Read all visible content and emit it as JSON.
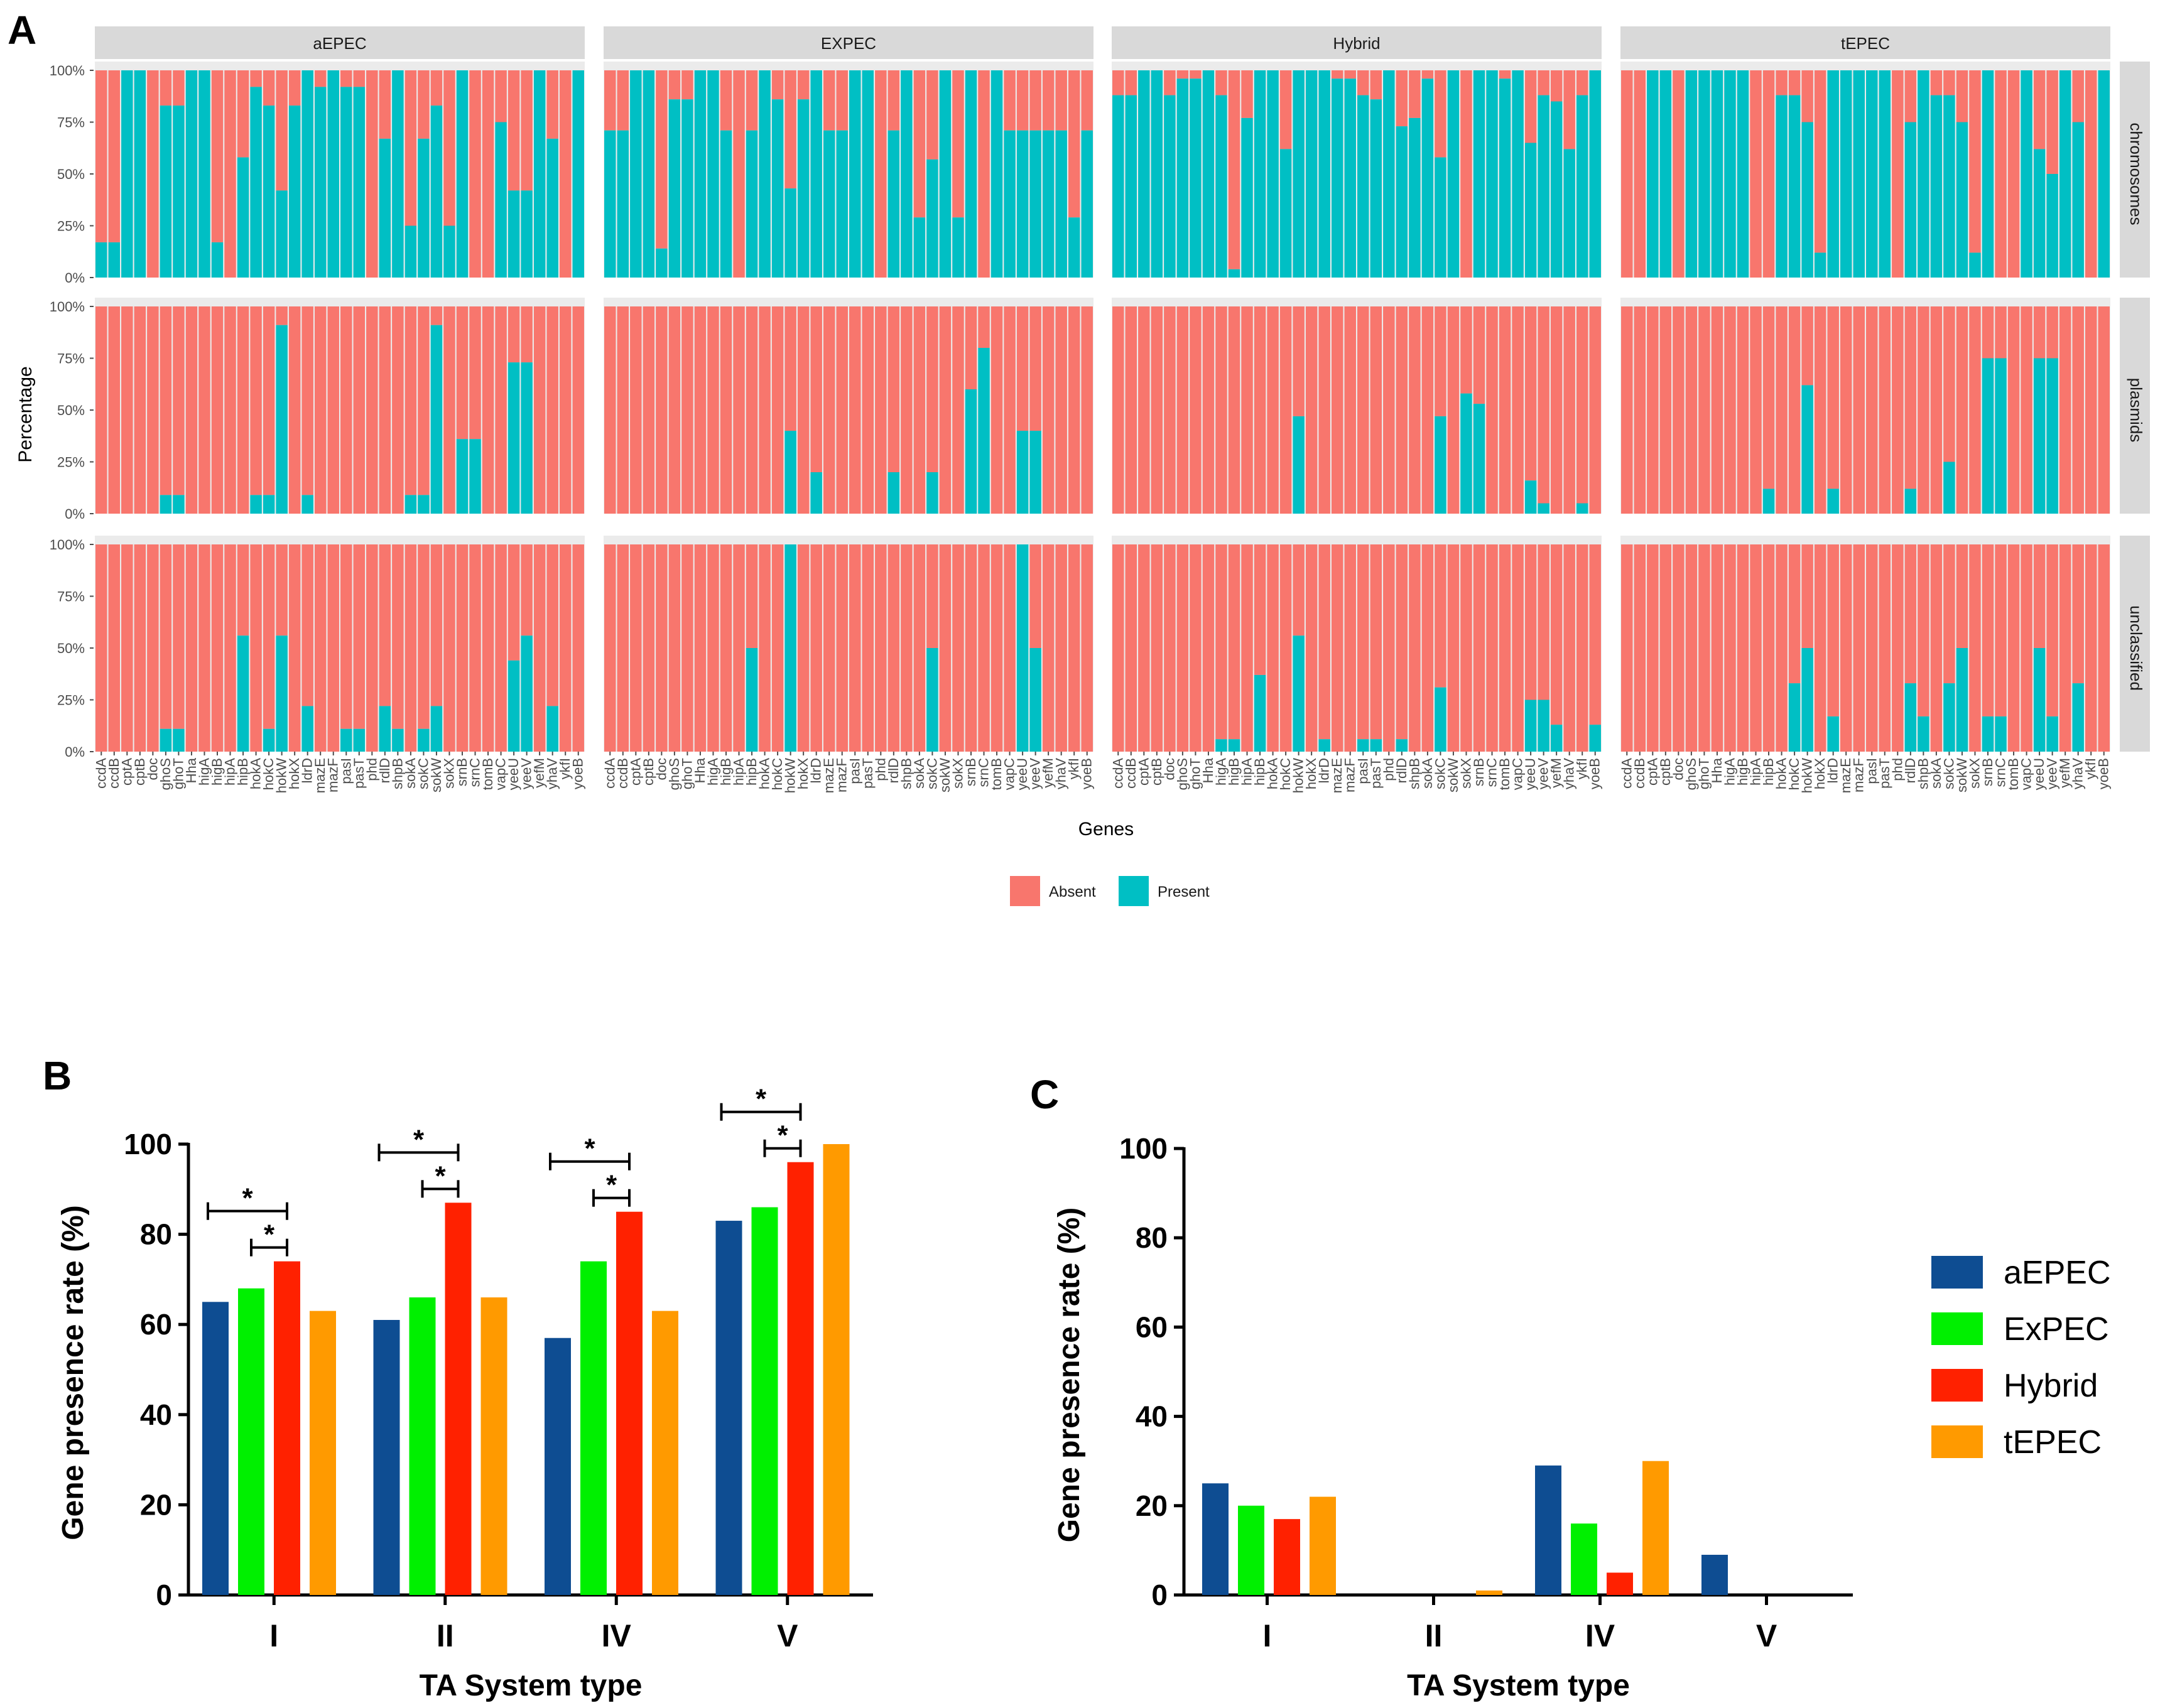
{
  "chart_data": [
    {
      "panel": "A",
      "type": "bar",
      "stacked": true,
      "xlabel": "Genes",
      "ylabel": "Percentage",
      "yticks": [
        "0%",
        "25%",
        "50%",
        "75%",
        "100%"
      ],
      "columns": [
        "aEPEC",
        "EXPEC",
        "Hybrid",
        "tEPEC"
      ],
      "rows": [
        "chromosomes",
        "plasmids",
        "unclassified"
      ],
      "legend": [
        {
          "label": "Absent",
          "color": "#F8766D"
        },
        {
          "label": "Present",
          "color": "#00BFC4"
        }
      ],
      "genes": [
        "ccdA",
        "ccdB",
        "cptA",
        "cptB",
        "doc",
        "ghoS",
        "ghoT",
        "Hha",
        "higA",
        "higB",
        "hipA",
        "hipB",
        "hokA",
        "hokC",
        "hokW",
        "hokX",
        "ldrD",
        "mazE",
        "mazF",
        "pasI",
        "pasT",
        "phd",
        "rdlD",
        "shpB",
        "sokA",
        "sokC",
        "sokW",
        "sokX",
        "srnB",
        "srnC",
        "tomB",
        "vapC",
        "yeeU",
        "yeeV",
        "yefM",
        "yhaV",
        "ykfI",
        "yoeB"
      ],
      "present_percent": {
        "chromosomes": {
          "aEPEC": [
            17,
            17,
            100,
            100,
            0,
            83,
            83,
            100,
            100,
            17,
            0,
            58,
            92,
            83,
            42,
            83,
            100,
            92,
            100,
            92,
            92,
            0,
            67,
            100,
            25,
            67,
            83,
            25,
            100,
            0,
            0,
            75,
            42,
            42,
            100,
            67,
            0,
            100
          ],
          "EXPEC": [
            71,
            71,
            100,
            100,
            14,
            86,
            86,
            100,
            100,
            71,
            0,
            71,
            100,
            86,
            43,
            86,
            100,
            71,
            71,
            100,
            100,
            0,
            71,
            100,
            29,
            57,
            100,
            29,
            100,
            0,
            100,
            71,
            71,
            71,
            71,
            71,
            29,
            71
          ],
          "Hybrid": [
            88,
            88,
            100,
            100,
            88,
            96,
            96,
            100,
            88,
            4,
            77,
            100,
            100,
            62,
            100,
            100,
            100,
            96,
            96,
            88,
            86,
            100,
            73,
            77,
            96,
            58,
            100,
            0,
            100,
            100,
            96,
            100,
            65,
            88,
            85,
            62,
            88,
            100
          ],
          "tEPEC": [
            0,
            0,
            100,
            100,
            0,
            100,
            100,
            100,
            100,
            100,
            0,
            0,
            88,
            88,
            75,
            12,
            100,
            100,
            100,
            100,
            100,
            0,
            75,
            100,
            88,
            88,
            75,
            12,
            100,
            0,
            0,
            100,
            62,
            50,
            100,
            75,
            0,
            100
          ]
        },
        "plasmids": {
          "aEPEC": [
            0,
            0,
            0,
            0,
            0,
            9,
            9,
            0,
            0,
            0,
            0,
            0,
            9,
            9,
            91,
            0,
            9,
            0,
            0,
            0,
            0,
            0,
            0,
            0,
            9,
            9,
            91,
            0,
            36,
            36,
            0,
            0,
            73,
            73,
            0,
            0,
            0,
            0
          ],
          "EXPEC": [
            0,
            0,
            0,
            0,
            0,
            0,
            0,
            0,
            0,
            0,
            0,
            0,
            0,
            0,
            40,
            0,
            20,
            0,
            0,
            0,
            0,
            0,
            20,
            0,
            0,
            20,
            0,
            0,
            60,
            80,
            0,
            0,
            40,
            40,
            0,
            0,
            0,
            0
          ],
          "Hybrid": [
            0,
            0,
            0,
            0,
            0,
            0,
            0,
            0,
            0,
            0,
            0,
            0,
            0,
            0,
            47,
            0,
            0,
            0,
            0,
            0,
            0,
            0,
            0,
            0,
            0,
            47,
            0,
            58,
            53,
            0,
            0,
            0,
            16,
            5,
            0,
            0,
            5,
            0
          ],
          "tEPEC": [
            0,
            0,
            0,
            0,
            0,
            0,
            0,
            0,
            0,
            0,
            0,
            12,
            0,
            0,
            62,
            0,
            12,
            0,
            0,
            0,
            0,
            0,
            12,
            0,
            0,
            25,
            0,
            0,
            75,
            75,
            0,
            0,
            75,
            75,
            0,
            0,
            0,
            0
          ]
        },
        "unclassified": {
          "aEPEC": [
            0,
            0,
            0,
            0,
            0,
            11,
            11,
            0,
            0,
            0,
            0,
            56,
            0,
            11,
            56,
            0,
            22,
            0,
            0,
            11,
            11,
            0,
            22,
            11,
            0,
            11,
            22,
            0,
            0,
            0,
            0,
            0,
            44,
            56,
            0,
            22,
            0,
            0
          ],
          "EXPEC": [
            0,
            0,
            0,
            0,
            0,
            0,
            0,
            0,
            0,
            0,
            0,
            50,
            0,
            0,
            100,
            0,
            0,
            0,
            0,
            0,
            0,
            0,
            0,
            0,
            0,
            50,
            0,
            0,
            0,
            0,
            0,
            0,
            100,
            50,
            0,
            0,
            0,
            0
          ],
          "Hybrid": [
            0,
            0,
            0,
            0,
            0,
            0,
            0,
            0,
            6,
            6,
            0,
            37,
            0,
            0,
            56,
            0,
            6,
            0,
            0,
            6,
            6,
            0,
            6,
            0,
            0,
            31,
            0,
            0,
            0,
            0,
            0,
            0,
            25,
            25,
            13,
            0,
            0,
            13
          ],
          "tEPEC": [
            0,
            0,
            0,
            0,
            0,
            0,
            0,
            0,
            0,
            0,
            0,
            0,
            0,
            33,
            50,
            0,
            17,
            0,
            0,
            0,
            0,
            0,
            33,
            17,
            0,
            33,
            50,
            0,
            17,
            17,
            0,
            0,
            50,
            17,
            0,
            33,
            0,
            0
          ]
        }
      }
    },
    {
      "panel": "B",
      "type": "bar",
      "xlabel": "TA System type",
      "ylabel": "Gene presence rate (%)",
      "ylim": [
        0,
        100
      ],
      "yticks": [
        0,
        20,
        40,
        60,
        80,
        100
      ],
      "categories": [
        "I",
        "II",
        "IV",
        "V"
      ],
      "series": [
        {
          "name": "aEPEC",
          "color": "#0E4D92",
          "values": [
            65,
            61,
            57,
            83
          ]
        },
        {
          "name": "ExPEC",
          "color": "#00F000",
          "values": [
            68,
            66,
            74,
            86
          ]
        },
        {
          "name": "Hybrid",
          "color": "#FF2100",
          "values": [
            74,
            87,
            85,
            96
          ]
        },
        {
          "name": "tEPEC",
          "color": "#FF9A00",
          "values": [
            63,
            66,
            63,
            100
          ]
        }
      ],
      "significance": [
        {
          "category": "I",
          "from_series": "aEPEC",
          "to_series": "Hybrid",
          "label": "*"
        },
        {
          "category": "I",
          "from_series": "ExPEC",
          "to_series": "Hybrid",
          "label": "*"
        },
        {
          "category": "II",
          "from_series": "aEPEC",
          "to_series": "Hybrid",
          "label": "*"
        },
        {
          "category": "II",
          "from_series": "ExPEC",
          "to_series": "Hybrid",
          "label": "*"
        },
        {
          "category": "IV",
          "from_series": "aEPEC",
          "to_series": "Hybrid",
          "label": "*"
        },
        {
          "category": "IV",
          "from_series": "ExPEC",
          "to_series": "Hybrid",
          "label": "*"
        },
        {
          "category": "V",
          "from_series": "aEPEC",
          "to_series": "Hybrid",
          "label": "*"
        },
        {
          "category": "V",
          "from_series": "ExPEC",
          "to_series": "Hybrid",
          "label": "*"
        }
      ]
    },
    {
      "panel": "C",
      "type": "bar",
      "xlabel": "TA System type",
      "ylabel": "Gene presence rate (%)",
      "ylim": [
        0,
        100
      ],
      "yticks": [
        0,
        20,
        40,
        60,
        80,
        100
      ],
      "categories": [
        "I",
        "II",
        "IV",
        "V"
      ],
      "series": [
        {
          "name": "aEPEC",
          "color": "#0E4D92",
          "values": [
            25,
            0,
            29,
            9
          ]
        },
        {
          "name": "ExPEC",
          "color": "#00F000",
          "values": [
            20,
            0,
            16,
            0
          ]
        },
        {
          "name": "Hybrid",
          "color": "#FF2100",
          "values": [
            17,
            0,
            5,
            0
          ]
        },
        {
          "name": "tEPEC",
          "color": "#FF9A00",
          "values": [
            22,
            1,
            30,
            0
          ]
        }
      ],
      "legend": [
        "aEPEC",
        "ExPEC",
        "Hybrid",
        "tEPEC"
      ]
    }
  ]
}
